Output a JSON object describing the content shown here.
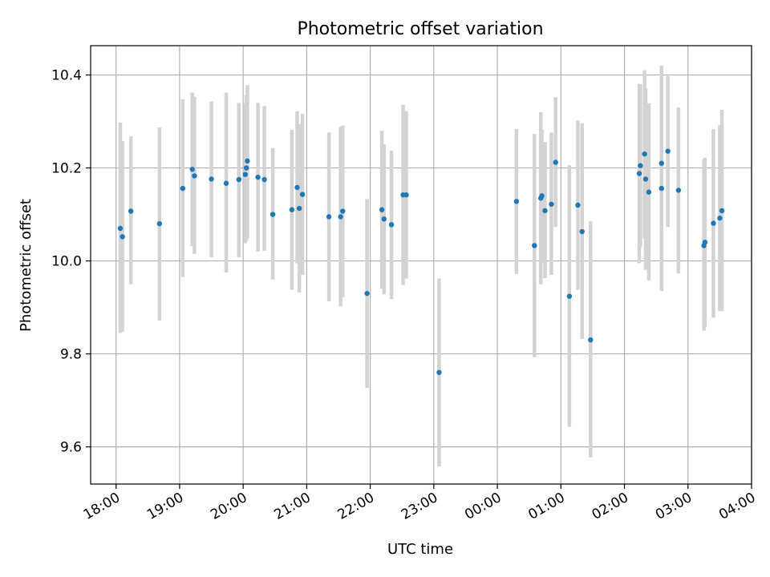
{
  "chart_data": {
    "type": "scatter",
    "title": "Photometric offset variation",
    "xlabel": "UTC time",
    "ylabel": "Photometric offset",
    "x_axis": "time",
    "xlim": [
      "17:36",
      "04:00"
    ],
    "ylim": [
      9.52,
      10.463
    ],
    "grid": true,
    "x_ticks": [
      "18:00",
      "19:00",
      "20:00",
      "21:00",
      "22:00",
      "23:00",
      "00:00",
      "01:00",
      "02:00",
      "03:00",
      "04:00"
    ],
    "y_ticks": [
      "9.6",
      "9.8",
      "10.0",
      "10.2",
      "10.4"
    ],
    "colors": {
      "point": "#1f77b4",
      "errorbar": "#d3d3d3",
      "grid": "#b0b0b0"
    },
    "points": [
      {
        "x": "18:04",
        "y": 10.07,
        "err_low": 9.845,
        "err_high": 10.298
      },
      {
        "x": "18:06",
        "y": 10.052,
        "err_low": 9.848,
        "err_high": 10.258
      },
      {
        "x": "18:14",
        "y": 10.107,
        "err_low": 9.95,
        "err_high": 10.268
      },
      {
        "x": "18:41",
        "y": 10.08,
        "err_low": 9.872,
        "err_high": 10.287
      },
      {
        "x": "19:03",
        "y": 10.156,
        "err_low": 9.965,
        "err_high": 10.348
      },
      {
        "x": "19:12",
        "y": 10.197,
        "err_low": 10.032,
        "err_high": 10.362
      },
      {
        "x": "19:14",
        "y": 10.183,
        "err_low": 10.015,
        "err_high": 10.353
      },
      {
        "x": "19:30",
        "y": 10.176,
        "err_low": 10.008,
        "err_high": 10.343
      },
      {
        "x": "19:44",
        "y": 10.167,
        "err_low": 9.975,
        "err_high": 10.362
      },
      {
        "x": "19:56",
        "y": 10.175,
        "err_low": 10.008,
        "err_high": 10.34
      },
      {
        "x": "20:02",
        "y": 10.186,
        "err_low": 10.038,
        "err_high": 10.339
      },
      {
        "x": "20:03",
        "y": 10.2,
        "err_low": 10.043,
        "err_high": 10.357
      },
      {
        "x": "20:04",
        "y": 10.215,
        "err_low": 10.048,
        "err_high": 10.378
      },
      {
        "x": "20:14",
        "y": 10.18,
        "err_low": 10.02,
        "err_high": 10.34
      },
      {
        "x": "20:20",
        "y": 10.175,
        "err_low": 10.022,
        "err_high": 10.333
      },
      {
        "x": "20:28",
        "y": 10.1,
        "err_low": 9.96,
        "err_high": 10.243
      },
      {
        "x": "20:46",
        "y": 10.11,
        "err_low": 9.938,
        "err_high": 10.282
      },
      {
        "x": "20:51",
        "y": 10.158,
        "err_low": 9.995,
        "err_high": 10.322
      },
      {
        "x": "20:53",
        "y": 10.113,
        "err_low": 9.932,
        "err_high": 10.294
      },
      {
        "x": "20:56",
        "y": 10.143,
        "err_low": 9.97,
        "err_high": 10.316
      },
      {
        "x": "21:21",
        "y": 10.095,
        "err_low": 9.913,
        "err_high": 10.276
      },
      {
        "x": "21:32",
        "y": 10.095,
        "err_low": 9.902,
        "err_high": 10.288
      },
      {
        "x": "21:34",
        "y": 10.107,
        "err_low": 9.922,
        "err_high": 10.291
      },
      {
        "x": "21:57",
        "y": 9.93,
        "err_low": 9.727,
        "err_high": 10.133
      },
      {
        "x": "22:11",
        "y": 10.11,
        "err_low": 9.94,
        "err_high": 10.28
      },
      {
        "x": "22:13",
        "y": 10.09,
        "err_low": 9.928,
        "err_high": 10.251
      },
      {
        "x": "22:20",
        "y": 10.078,
        "err_low": 9.918,
        "err_high": 10.237
      },
      {
        "x": "22:31",
        "y": 10.142,
        "err_low": 9.948,
        "err_high": 10.336
      },
      {
        "x": "22:34",
        "y": 10.142,
        "err_low": 9.962,
        "err_high": 10.322
      },
      {
        "x": "23:05",
        "y": 9.76,
        "err_low": 9.558,
        "err_high": 9.962
      },
      {
        "x": "00:18",
        "y": 10.128,
        "err_low": 9.972,
        "err_high": 10.284
      },
      {
        "x": "00:35",
        "y": 10.033,
        "err_low": 9.793,
        "err_high": 10.273
      },
      {
        "x": "00:41",
        "y": 10.135,
        "err_low": 9.95,
        "err_high": 10.32
      },
      {
        "x": "00:42",
        "y": 10.14,
        "err_low": 9.996,
        "err_high": 10.283
      },
      {
        "x": "00:45",
        "y": 10.108,
        "err_low": 9.963,
        "err_high": 10.256
      },
      {
        "x": "00:51",
        "y": 10.122,
        "err_low": 9.97,
        "err_high": 10.276
      },
      {
        "x": "00:55",
        "y": 10.212,
        "err_low": 10.073,
        "err_high": 10.352
      },
      {
        "x": "01:08",
        "y": 9.924,
        "err_low": 9.643,
        "err_high": 10.206
      },
      {
        "x": "01:16",
        "y": 10.12,
        "err_low": 9.938,
        "err_high": 10.302
      },
      {
        "x": "01:20",
        "y": 10.063,
        "err_low": 9.832,
        "err_high": 10.296
      },
      {
        "x": "01:28",
        "y": 9.83,
        "err_low": 9.577,
        "err_high": 10.085
      },
      {
        "x": "02:14",
        "y": 10.188,
        "err_low": 9.995,
        "err_high": 10.381
      },
      {
        "x": "02:15",
        "y": 10.205,
        "err_low": 10.03,
        "err_high": 10.38
      },
      {
        "x": "02:19",
        "y": 10.23,
        "err_low": 10.048,
        "err_high": 10.41
      },
      {
        "x": "02:20",
        "y": 10.176,
        "err_low": 9.981,
        "err_high": 10.371
      },
      {
        "x": "02:23",
        "y": 10.148,
        "err_low": 9.958,
        "err_high": 10.339
      },
      {
        "x": "02:35",
        "y": 10.156,
        "err_low": 9.935,
        "err_high": 10.378
      },
      {
        "x": "02:35",
        "y": 10.21,
        "err_low": 10.0,
        "err_high": 10.42
      },
      {
        "x": "02:41",
        "y": 10.236,
        "err_low": 10.073,
        "err_high": 10.398
      },
      {
        "x": "02:51",
        "y": 10.152,
        "err_low": 9.973,
        "err_high": 10.33
      },
      {
        "x": "03:15",
        "y": 10.033,
        "err_low": 9.85,
        "err_high": 10.218
      },
      {
        "x": "03:16",
        "y": 10.04,
        "err_low": 9.857,
        "err_high": 10.222
      },
      {
        "x": "03:24",
        "y": 10.081,
        "err_low": 9.878,
        "err_high": 10.283
      },
      {
        "x": "03:30",
        "y": 10.092,
        "err_low": 9.892,
        "err_high": 10.292
      },
      {
        "x": "03:32",
        "y": 10.108,
        "err_low": 9.892,
        "err_high": 10.325
      }
    ]
  }
}
